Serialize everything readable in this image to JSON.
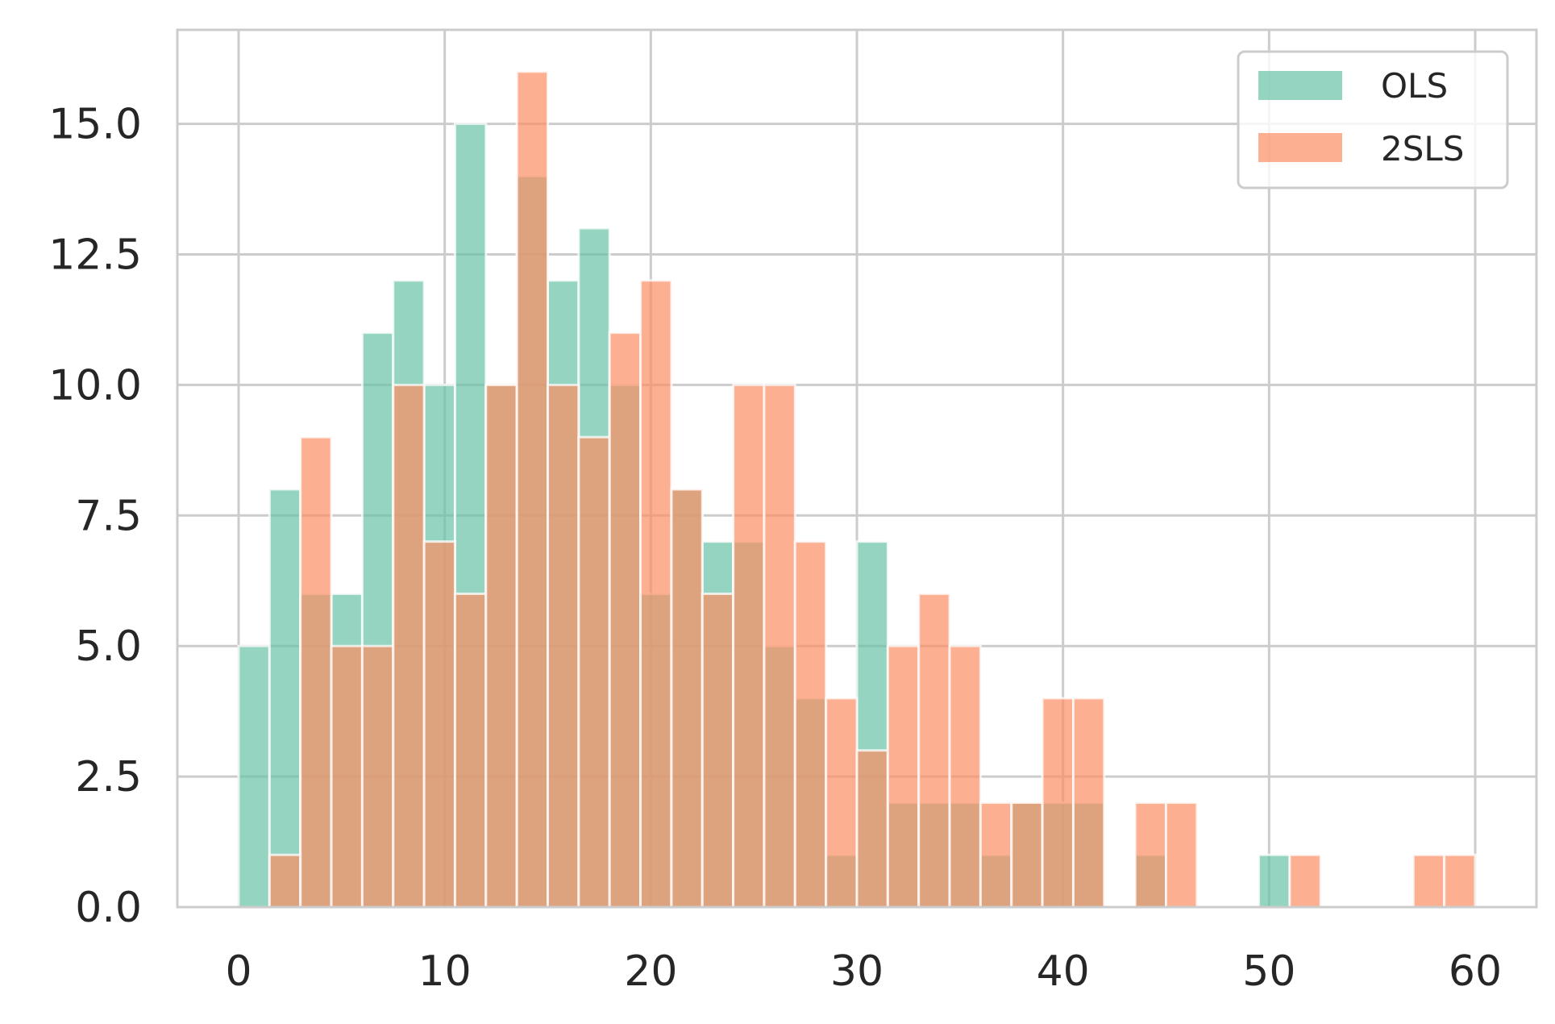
{
  "chart_data": {
    "type": "bar",
    "subtype": "overlaid-histogram",
    "title": "",
    "xlabel": "",
    "ylabel": "",
    "xlim": [
      -3,
      63
    ],
    "ylim": [
      0,
      16.8
    ],
    "x_ticks": [
      "0",
      "10",
      "20",
      "30",
      "40",
      "50",
      "60"
    ],
    "y_ticks": [
      "0.0",
      "2.5",
      "5.0",
      "7.5",
      "10.0",
      "12.5",
      "15.0"
    ],
    "grid": true,
    "legend_position": "top-right",
    "bin_edges": [
      0,
      1.5,
      3,
      4.5,
      6,
      7.5,
      9,
      10.5,
      12,
      13.5,
      15,
      16.5,
      18,
      19.5,
      21,
      22.5,
      24,
      25.5,
      27,
      28.5,
      30,
      31.5,
      33,
      34.5,
      36,
      37.5,
      39,
      40.5,
      42,
      43.5,
      45,
      46.5,
      48,
      49.5,
      51,
      52.5,
      54,
      55.5,
      57,
      58.5,
      60
    ],
    "series": [
      {
        "name": "OLS",
        "color": "#66c2a5",
        "values": [
          5,
          8,
          6,
          6,
          11,
          12,
          10,
          15,
          10,
          14,
          12,
          13,
          10,
          6,
          8,
          7,
          7,
          5,
          4,
          1,
          7,
          2,
          2,
          2,
          1,
          2,
          2,
          2,
          0,
          1,
          0,
          0,
          0,
          1,
          0,
          0,
          0,
          0,
          0,
          0
        ]
      },
      {
        "name": "2SLS",
        "color": "#fc8d62",
        "values": [
          0,
          1,
          9,
          5,
          5,
          10,
          7,
          6,
          10,
          16,
          10,
          9,
          11,
          12,
          8,
          6,
          10,
          10,
          7,
          4,
          3,
          5,
          6,
          5,
          2,
          2,
          4,
          4,
          0,
          2,
          2,
          0,
          0,
          0,
          1,
          0,
          0,
          0,
          1,
          1
        ]
      }
    ]
  }
}
